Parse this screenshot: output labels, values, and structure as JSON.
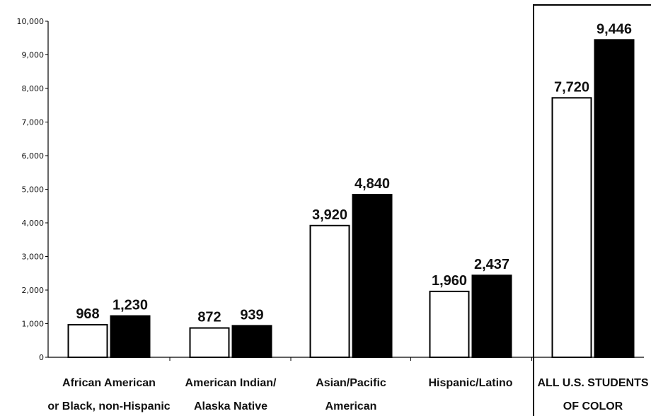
{
  "chart_data": {
    "type": "bar",
    "categories": [
      [
        "African American",
        "or Black, non-Hispanic"
      ],
      [
        "American Indian/",
        "Alaska Native"
      ],
      [
        "Asian/Pacific",
        "American"
      ],
      [
        "Hispanic/Latino"
      ],
      [
        "ALL U.S. STUDENTS",
        "OF COLOR"
      ]
    ],
    "series": [
      {
        "values": [
          968,
          872,
          3920,
          1960,
          7720
        ],
        "value_labels": [
          "968",
          "872",
          "3,920",
          "1,960",
          "7,720"
        ],
        "color": "#ffffff"
      },
      {
        "values": [
          1230,
          939,
          4840,
          2437,
          9446
        ],
        "value_labels": [
          "1,230",
          "939",
          "4,840",
          "2,437",
          "9,446"
        ],
        "color": "#000000"
      }
    ],
    "ylim": [
      0,
      10000
    ],
    "yticks": [
      0,
      1000,
      2000,
      3000,
      4000,
      5000,
      6000,
      7000,
      8000,
      9000,
      10000
    ],
    "ytick_labels": [
      "0",
      "1,000",
      "2,000",
      "3,000",
      "4,000",
      "5,000",
      "6,000",
      "7,000",
      "8,000",
      "9,000",
      "10,000"
    ],
    "highlighted_category_index": 4,
    "grid": false,
    "title": "",
    "xlabel": "",
    "ylabel": ""
  }
}
